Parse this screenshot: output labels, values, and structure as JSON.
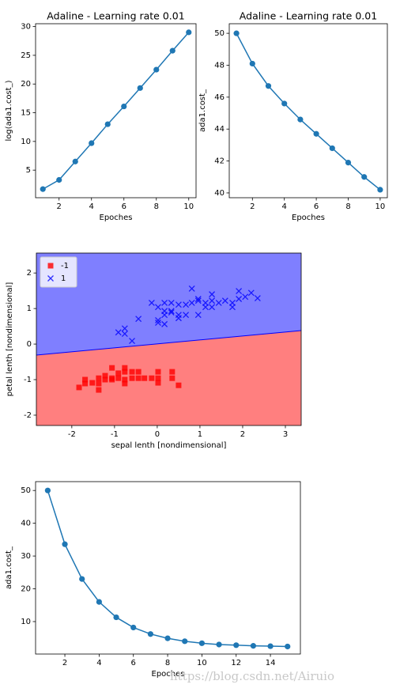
{
  "chart_data": [
    {
      "type": "line",
      "title": "Adaline - Learning rate 0.01",
      "xlabel": "Epoches",
      "ylabel": "log(ada1.cost_)",
      "x": [
        1,
        2,
        3,
        4,
        5,
        6,
        7,
        8,
        9,
        10
      ],
      "values": [
        1.7,
        3.3,
        6.5,
        9.7,
        13.0,
        16.1,
        19.3,
        22.5,
        25.8,
        29.0
      ],
      "color": "#1f77b4",
      "marker": "o",
      "xlim": [
        0.55,
        10.45
      ],
      "xticks": [
        2,
        4,
        6,
        8,
        10
      ],
      "ylim": [
        0.2,
        30.5
      ],
      "yticks": [
        5,
        10,
        15,
        20,
        25,
        30
      ]
    },
    {
      "type": "line",
      "title": "Adaline - Learning rate 0.01",
      "xlabel": "Epoches",
      "ylabel": "ada1.cost_",
      "x": [
        1,
        2,
        3,
        4,
        5,
        6,
        7,
        8,
        9,
        10
      ],
      "values": [
        50.0,
        48.1,
        46.7,
        45.6,
        44.6,
        43.7,
        42.8,
        41.9,
        41.0,
        40.2
      ],
      "color": "#1f77b4",
      "marker": "o",
      "xlim": [
        0.55,
        10.45
      ],
      "xticks": [
        2,
        4,
        6,
        8,
        10
      ],
      "ylim": [
        39.7,
        50.6
      ],
      "yticks": [
        40,
        42,
        44,
        46,
        48,
        50
      ]
    },
    {
      "type": "scatter",
      "xlabel": "sepal lenth [nondimensional]",
      "ylabel": "petal lenth [nondimensional]",
      "xlim": [
        -2.83,
        3.37
      ],
      "xticks": [
        -2,
        -1,
        0,
        1,
        2,
        3
      ],
      "ylim": [
        -2.29,
        2.56
      ],
      "yticks": [
        -2,
        -1,
        0,
        1,
        2
      ],
      "legend": "upper left",
      "boundary": {
        "x": [
          -2.83,
          3.37
        ],
        "y": [
          -0.31,
          0.38
        ]
      },
      "series": [
        {
          "name": "-1",
          "color": "red",
          "marker": "s",
          "x": [
            -1.83,
            -1.69,
            -1.69,
            -1.52,
            -1.37,
            -1.37,
            -1.37,
            -1.22,
            -1.22,
            -1.06,
            -1.06,
            -1.06,
            -0.91,
            -0.91,
            -0.76,
            -0.76,
            -0.76,
            -0.76,
            -0.59,
            -0.59,
            -0.44,
            -0.44,
            -0.3,
            -0.13,
            0.02,
            0.02,
            0.02,
            0.35,
            0.35,
            0.5
          ],
          "values": [
            -1.22,
            -1.0,
            -1.11,
            -1.09,
            -0.96,
            -1.29,
            -1.11,
            -0.89,
            -1.0,
            -0.67,
            -0.96,
            -1.0,
            -0.96,
            -0.82,
            -1.0,
            -1.11,
            -0.67,
            -0.78,
            -0.78,
            -0.96,
            -0.96,
            -0.78,
            -0.96,
            -0.96,
            -0.96,
            -0.78,
            -1.09,
            -0.78,
            -0.96,
            -1.16
          ]
        },
        {
          "name": "1",
          "color": "blue",
          "marker": "x",
          "x": [
            -0.91,
            -0.76,
            -0.76,
            -0.59,
            -0.44,
            -0.13,
            0.02,
            0.02,
            0.02,
            0.17,
            0.17,
            0.17,
            0.17,
            0.33,
            0.33,
            0.33,
            0.5,
            0.5,
            0.5,
            0.67,
            0.67,
            0.81,
            0.81,
            0.96,
            0.96,
            0.96,
            1.13,
            1.13,
            1.28,
            1.28,
            1.28,
            1.44,
            1.59,
            1.76,
            1.76,
            1.91,
            1.91,
            2.06,
            2.2,
            2.35
          ],
          "values": [
            0.33,
            0.44,
            0.29,
            0.09,
            0.71,
            1.16,
            1.04,
            0.67,
            0.6,
            1.16,
            0.93,
            0.82,
            0.56,
            1.16,
            0.93,
            0.89,
            1.11,
            0.82,
            0.73,
            1.11,
            0.82,
            1.56,
            1.16,
            1.27,
            1.22,
            0.82,
            1.16,
            1.04,
            1.4,
            1.22,
            1.04,
            1.16,
            1.22,
            1.16,
            1.04,
            1.49,
            1.27,
            1.33,
            1.44,
            1.29
          ]
        }
      ]
    },
    {
      "type": "line",
      "xlabel": "Epoches",
      "ylabel": "ada1.cost_",
      "x": [
        1,
        2,
        3,
        4,
        5,
        6,
        7,
        8,
        9,
        10,
        11,
        12,
        13,
        14,
        15
      ],
      "values": [
        50.0,
        33.6,
        23.0,
        16.0,
        11.3,
        8.2,
        6.2,
        4.9,
        4.0,
        3.4,
        3.0,
        2.8,
        2.6,
        2.5,
        2.4
      ],
      "color": "#1f77b4",
      "marker": "o",
      "xlim": [
        0.29,
        15.75
      ],
      "xticks": [
        2,
        4,
        6,
        8,
        10,
        12,
        14
      ],
      "ylim": [
        0.1,
        52.7
      ],
      "yticks": [
        10,
        20,
        30,
        40,
        50
      ]
    }
  ],
  "watermark": "https://blog.csdn.net/Airuio"
}
